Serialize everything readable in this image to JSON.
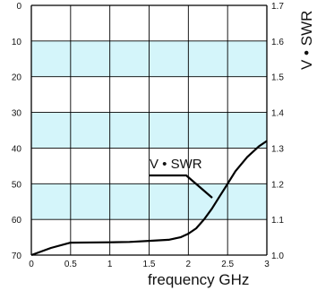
{
  "chart_data": {
    "type": "line",
    "x_ticks": [
      "0",
      "0.5",
      "1",
      "1.5",
      "2",
      "2.5",
      "3"
    ],
    "left_ticks": [
      "0",
      "10",
      "20",
      "30",
      "40",
      "50",
      "60",
      "70"
    ],
    "right_ticks": [
      "1.7",
      "1.6",
      "1.5",
      "1.4",
      "1.3",
      "1.2",
      "1.1",
      "1.0"
    ],
    "xlabel": "frequency GHz",
    "ylabel_right": "V • SWR",
    "xlim": [
      0,
      3
    ],
    "ylim_left": [
      0,
      70
    ],
    "ylim_right": [
      1.0,
      1.7
    ],
    "grid": true,
    "series": [
      {
        "name": "V • SWR",
        "axis": "right",
        "x": [
          0,
          0.25,
          0.5,
          1.0,
          1.25,
          1.5,
          1.75,
          1.9,
          2.0,
          2.1,
          2.2,
          2.3,
          2.4,
          2.5,
          2.6,
          2.75,
          2.9,
          3.0
        ],
        "y": [
          1.0,
          1.02,
          1.035,
          1.036,
          1.037,
          1.04,
          1.043,
          1.05,
          1.06,
          1.075,
          1.1,
          1.13,
          1.165,
          1.2,
          1.235,
          1.275,
          1.305,
          1.32
        ]
      }
    ],
    "annotation": {
      "text": "V • SWR"
    }
  },
  "colors": {
    "band": "#d4f5fa",
    "grid": "#000000",
    "line": "#000000"
  }
}
